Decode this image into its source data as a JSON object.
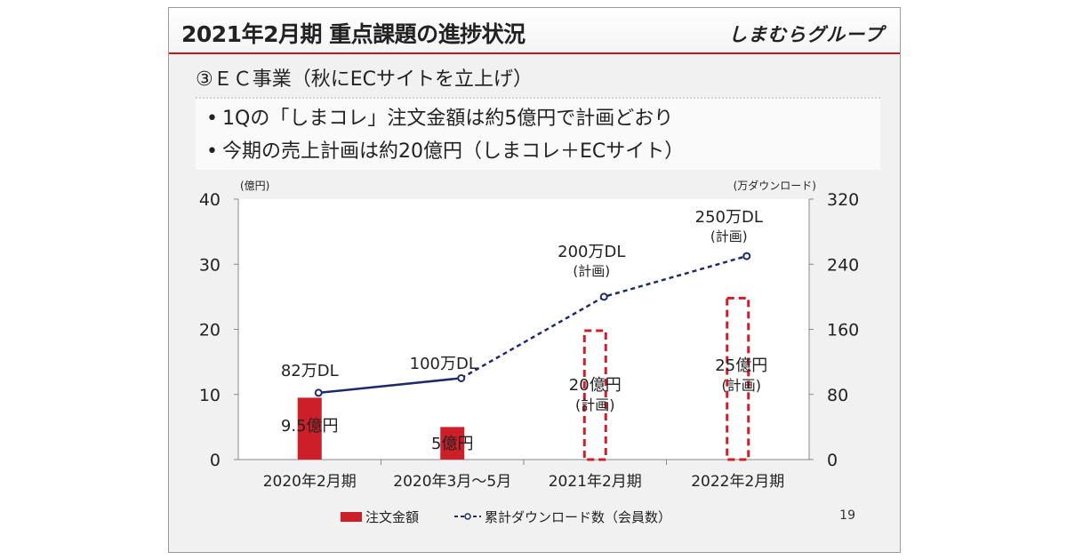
{
  "slide": {
    "title": "2021年2月期 重点課題の進捗状況",
    "logo": "しまむらグループ",
    "section_heading": "③ＥＣ事業（秋にECサイトを立上げ）",
    "bullets": [
      "1Qの「しまコレ」注文金額は約5億円で計画どおり",
      "今期の売上計画は約20億円（しまコレ＋ECサイト）"
    ],
    "page_number": "19"
  },
  "colors": {
    "bar": "#cc1f2a",
    "bar_plan_outline": "#cc1f2a",
    "line": "#1f2a6b",
    "accent": "#c4161c"
  },
  "chart_data": {
    "type": "bar+line",
    "categories": [
      "2020年2月期",
      "2020年3月～5月",
      "2021年2月期",
      "2022年2月期"
    ],
    "left_axis": {
      "unit": "(億円)",
      "ylim": [
        0,
        40
      ],
      "ticks": [
        "0",
        "10",
        "20",
        "30",
        "40"
      ]
    },
    "right_axis": {
      "unit": "(万ダウンロード)",
      "ylim": [
        0,
        320
      ],
      "ticks": [
        "0",
        "80",
        "160",
        "240",
        "320"
      ]
    },
    "series": [
      {
        "name": "注文金額",
        "type": "bar",
        "axis": "left",
        "values": [
          9.5,
          5,
          20,
          25
        ],
        "planned": [
          false,
          false,
          true,
          true
        ],
        "labels": [
          [
            "9.5億円"
          ],
          [
            "5億円"
          ],
          [
            "20億円",
            "(計画)"
          ],
          [
            "25億円",
            "(計画)"
          ]
        ]
      },
      {
        "name": "累計ダウンロード数（会員数）",
        "type": "line",
        "axis": "right",
        "values": [
          82,
          100,
          200,
          250
        ],
        "labels": [
          [
            "82万DL"
          ],
          [
            "100万DL"
          ],
          [
            "200万DL",
            "(計画)"
          ],
          [
            "250万DL",
            "(計画)"
          ]
        ]
      }
    ],
    "grid": false,
    "legend": "bottom"
  }
}
